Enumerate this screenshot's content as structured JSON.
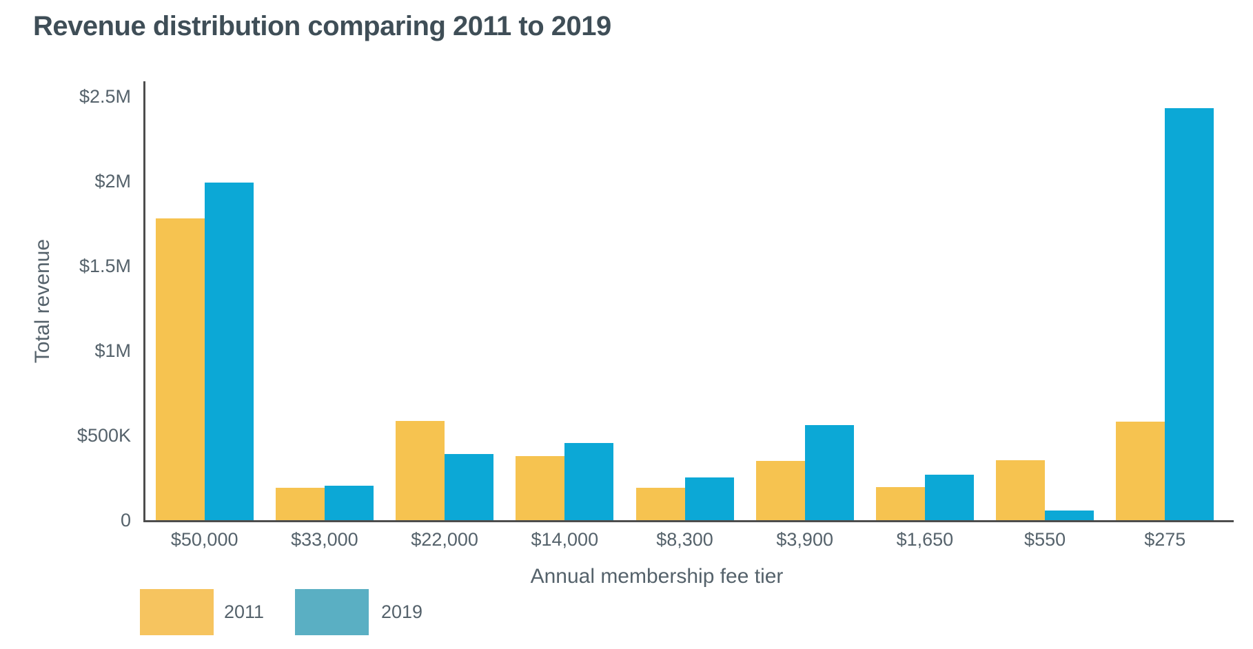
{
  "title": "Revenue distribution comparing 2011 to 2019",
  "colors": {
    "title_text": "#3f4e57",
    "axis_text": "#55626b",
    "axis_line": "#4d4d4d",
    "bar_2011": "#f6c350",
    "bar_2019": "#0ca8d6",
    "legend_2011": "#f6c45f",
    "legend_2019": "#5aafc3"
  },
  "chart_data": {
    "type": "bar",
    "title": "Revenue distribution comparing 2011 to 2019",
    "xlabel": "Annual membership fee tier",
    "ylabel": "Total revenue",
    "categories": [
      "$50,000",
      "$33,000",
      "$22,000",
      "$14,000",
      "$8,300",
      "$3,900",
      "$1,650",
      "$550",
      "$275"
    ],
    "series": [
      {
        "name": "2011",
        "color": "#f6c350",
        "values_millions": [
          1.78,
          0.19,
          0.585,
          0.38,
          0.19,
          0.35,
          0.195,
          0.355,
          0.58
        ]
      },
      {
        "name": "2019",
        "color": "#0ca8d6",
        "values_millions": [
          1.99,
          0.205,
          0.39,
          0.455,
          0.25,
          0.56,
          0.27,
          0.055,
          2.43
        ]
      }
    ],
    "y_ticks": [
      {
        "label": "$2.5M",
        "value": 2.5
      },
      {
        "label": "$2M",
        "value": 2.0
      },
      {
        "label": "$1.5M",
        "value": 1.5
      },
      {
        "label": "$1M",
        "value": 1.0
      },
      {
        "label": "$500K",
        "value": 0.5
      },
      {
        "label": "0",
        "value": 0
      }
    ],
    "ylim": [
      0,
      2.5
    ],
    "grid": false,
    "legend_position": "bottom-left"
  },
  "legend": {
    "items": [
      {
        "label": "2011",
        "color": "#f6c45f"
      },
      {
        "label": "2019",
        "color": "#5aafc3"
      }
    ]
  }
}
